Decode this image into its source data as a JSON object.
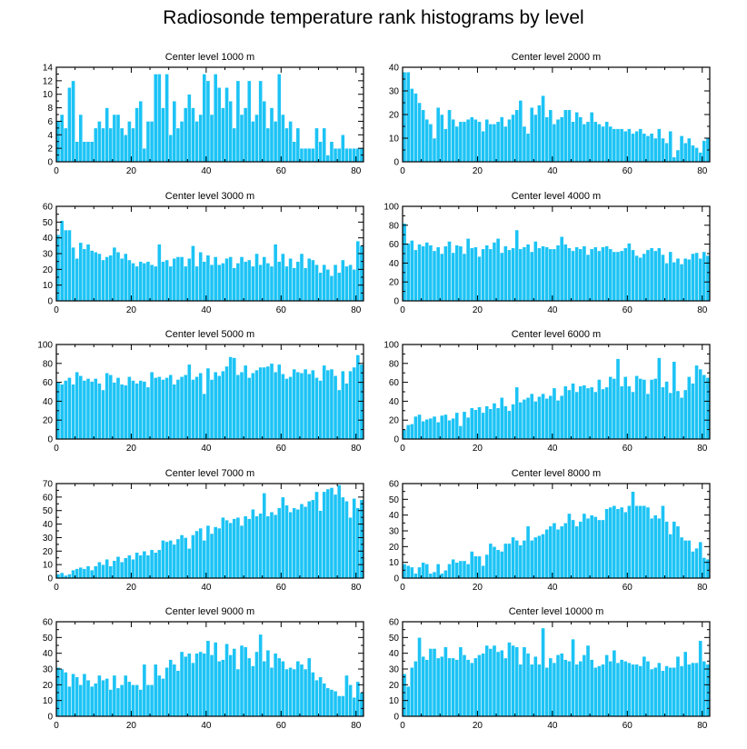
{
  "title": "Radiosonde temperature rank histograms by level",
  "colors": {
    "bar": "#1cc3f5",
    "bar_edge": "#ffffff",
    "axis": "#000000"
  },
  "chart_data": [
    {
      "type": "bar",
      "title": "Center level 1000 m",
      "x": "0..81",
      "ylim": [
        0,
        14
      ],
      "yticks": [
        0,
        2,
        4,
        6,
        8,
        10,
        12,
        14
      ],
      "xticks": [
        0,
        20,
        40,
        60,
        80
      ],
      "values": [
        6,
        7,
        5,
        11,
        12,
        3,
        7,
        3,
        3,
        3,
        5,
        6,
        5,
        8,
        5,
        7,
        7,
        5,
        4,
        6,
        5,
        8,
        9,
        2,
        6,
        6,
        13,
        13,
        8,
        13,
        4,
        9,
        5,
        6,
        8,
        10,
        8,
        6,
        7,
        13,
        12,
        7,
        13,
        11,
        8,
        11,
        9,
        5,
        12,
        7,
        8,
        12,
        6,
        7,
        12,
        9,
        5,
        8,
        6,
        13,
        7,
        5,
        6,
        3,
        5,
        2,
        2,
        2,
        2,
        5,
        3,
        5,
        1,
        3,
        2,
        2,
        4,
        2,
        2,
        2,
        2,
        2
      ]
    },
    {
      "type": "bar",
      "title": "Center level 2000 m",
      "x": "0..81",
      "ylim": [
        0,
        40
      ],
      "yticks": [
        0,
        10,
        20,
        30,
        40
      ],
      "xticks": [
        0,
        20,
        40,
        60,
        80
      ],
      "values": [
        38,
        38,
        31,
        29,
        25,
        22,
        18,
        16,
        10,
        23,
        20,
        14,
        22,
        18,
        15,
        17,
        17,
        18,
        19,
        18,
        17,
        13,
        18,
        16,
        16,
        17,
        19,
        15,
        18,
        20,
        22,
        26,
        15,
        12,
        23,
        20,
        24,
        28,
        19,
        22,
        16,
        18,
        19,
        22,
        22,
        17,
        21,
        19,
        16,
        17,
        21,
        17,
        16,
        15,
        17,
        15,
        14,
        14,
        14,
        13,
        14,
        12,
        13,
        14,
        12,
        11,
        12,
        10,
        14,
        10,
        8,
        13,
        2,
        5,
        11,
        8,
        10,
        7,
        6,
        4,
        9,
        10
      ]
    },
    {
      "type": "bar",
      "title": "Center level 3000 m",
      "x": "0..81",
      "ylim": [
        0,
        60
      ],
      "yticks": [
        0,
        10,
        20,
        30,
        40,
        50,
        60
      ],
      "xticks": [
        0,
        20,
        40,
        60,
        80
      ],
      "values": [
        42,
        51,
        45,
        45,
        34,
        27,
        37,
        33,
        36,
        32,
        31,
        30,
        26,
        28,
        29,
        34,
        31,
        27,
        30,
        26,
        24,
        22,
        25,
        24,
        25,
        23,
        22,
        36,
        25,
        26,
        22,
        27,
        28,
        28,
        22,
        27,
        35,
        22,
        31,
        25,
        29,
        23,
        28,
        23,
        24,
        27,
        28,
        21,
        24,
        28,
        25,
        26,
        22,
        30,
        23,
        28,
        24,
        22,
        36,
        25,
        30,
        22,
        27,
        21,
        25,
        30,
        21,
        27,
        26,
        23,
        18,
        23,
        20,
        16,
        23,
        18,
        26,
        22,
        23,
        20,
        38,
        35
      ]
    },
    {
      "type": "bar",
      "title": "Center level 4000 m",
      "x": "0..81",
      "ylim": [
        0,
        100
      ],
      "yticks": [
        0,
        20,
        40,
        60,
        80,
        100
      ],
      "xticks": [
        0,
        20,
        40,
        60,
        80
      ],
      "values": [
        82,
        61,
        64,
        54,
        60,
        58,
        62,
        59,
        53,
        57,
        50,
        58,
        63,
        51,
        59,
        58,
        50,
        66,
        56,
        57,
        47,
        55,
        59,
        55,
        62,
        66,
        51,
        58,
        54,
        56,
        75,
        55,
        57,
        60,
        52,
        63,
        56,
        58,
        57,
        55,
        55,
        59,
        68,
        60,
        56,
        53,
        57,
        55,
        58,
        49,
        55,
        57,
        53,
        57,
        58,
        55,
        52,
        52,
        53,
        56,
        61,
        54,
        48,
        46,
        50,
        54,
        56,
        53,
        56,
        49,
        40,
        52,
        41,
        45,
        39,
        45,
        44,
        50,
        51,
        45,
        52,
        48
      ]
    },
    {
      "type": "bar",
      "title": "Center level 5000 m",
      "x": "0..81",
      "ylim": [
        0,
        100
      ],
      "yticks": [
        0,
        20,
        40,
        60,
        80,
        100
      ],
      "xticks": [
        0,
        20,
        40,
        60,
        80
      ],
      "values": [
        60,
        58,
        62,
        65,
        58,
        71,
        67,
        62,
        64,
        61,
        64,
        59,
        52,
        70,
        68,
        60,
        65,
        58,
        57,
        66,
        62,
        59,
        62,
        61,
        55,
        71,
        65,
        66,
        63,
        65,
        68,
        58,
        63,
        66,
        68,
        79,
        63,
        66,
        70,
        48,
        75,
        63,
        71,
        67,
        72,
        77,
        87,
        86,
        68,
        71,
        78,
        65,
        70,
        73,
        76,
        76,
        77,
        80,
        71,
        79,
        69,
        64,
        66,
        74,
        71,
        70,
        74,
        69,
        73,
        65,
        62,
        78,
        73,
        74,
        67,
        52,
        72,
        59,
        72,
        76,
        89,
        79
      ]
    },
    {
      "type": "bar",
      "title": "Center level 6000 m",
      "x": "0..81",
      "ylim": [
        0,
        100
      ],
      "yticks": [
        0,
        20,
        40,
        60,
        80,
        100
      ],
      "xticks": [
        0,
        20,
        40,
        60,
        80
      ],
      "values": [
        10,
        15,
        16,
        24,
        26,
        19,
        21,
        22,
        24,
        18,
        25,
        26,
        20,
        22,
        28,
        14,
        29,
        23,
        33,
        31,
        34,
        28,
        35,
        32,
        38,
        33,
        44,
        35,
        30,
        37,
        55,
        39,
        42,
        44,
        48,
        40,
        45,
        48,
        43,
        46,
        54,
        41,
        46,
        56,
        52,
        59,
        50,
        56,
        57,
        54,
        55,
        50,
        63,
        53,
        55,
        66,
        64,
        85,
        56,
        66,
        56,
        50,
        67,
        64,
        63,
        48,
        63,
        64,
        86,
        55,
        61,
        49,
        82,
        51,
        44,
        52,
        66,
        59,
        78,
        74,
        68,
        65
      ]
    },
    {
      "type": "bar",
      "title": "Center level 7000 m",
      "x": "0..81",
      "ylim": [
        0,
        70
      ],
      "yticks": [
        0,
        10,
        20,
        30,
        40,
        50,
        60,
        70
      ],
      "xticks": [
        0,
        20,
        40,
        60,
        80
      ],
      "values": [
        3,
        4,
        2,
        3,
        6,
        7,
        8,
        7,
        9,
        6,
        9,
        12,
        10,
        14,
        9,
        13,
        16,
        12,
        15,
        17,
        14,
        19,
        17,
        20,
        17,
        21,
        19,
        21,
        28,
        27,
        28,
        25,
        29,
        32,
        30,
        22,
        32,
        35,
        37,
        28,
        39,
        33,
        38,
        37,
        45,
        43,
        41,
        44,
        45,
        39,
        46,
        44,
        51,
        46,
        48,
        63,
        46,
        49,
        47,
        52,
        60,
        54,
        49,
        52,
        51,
        55,
        53,
        57,
        58,
        64,
        50,
        64,
        66,
        67,
        62,
        69,
        60,
        57,
        45,
        59,
        52,
        58
      ]
    },
    {
      "type": "bar",
      "title": "Center level 8000 m",
      "x": "0..81",
      "ylim": [
        0,
        60
      ],
      "yticks": [
        0,
        10,
        20,
        30,
        40,
        50,
        60
      ],
      "xticks": [
        0,
        20,
        40,
        60,
        80
      ],
      "values": [
        9,
        8,
        7,
        3,
        7,
        10,
        9,
        3,
        4,
        9,
        3,
        5,
        9,
        12,
        10,
        11,
        11,
        9,
        17,
        14,
        14,
        8,
        15,
        22,
        20,
        18,
        17,
        22,
        22,
        26,
        24,
        21,
        24,
        33,
        24,
        26,
        27,
        28,
        31,
        33,
        35,
        31,
        33,
        35,
        41,
        37,
        33,
        36,
        41,
        38,
        40,
        39,
        37,
        37,
        44,
        45,
        46,
        44,
        45,
        42,
        46,
        55,
        46,
        46,
        46,
        45,
        38,
        40,
        38,
        46,
        36,
        28,
        36,
        33,
        26,
        24,
        24,
        17,
        19,
        23,
        13,
        12
      ]
    },
    {
      "type": "bar",
      "title": "Center level 9000 m",
      "x": "0..81",
      "ylim": [
        0,
        60
      ],
      "yticks": [
        0,
        10,
        20,
        30,
        40,
        50,
        60
      ],
      "xticks": [
        0,
        20,
        40,
        60,
        80
      ],
      "values": [
        31,
        30,
        28,
        19,
        27,
        25,
        20,
        27,
        23,
        19,
        21,
        26,
        23,
        24,
        17,
        26,
        18,
        20,
        26,
        22,
        20,
        20,
        17,
        33,
        20,
        20,
        33,
        26,
        24,
        31,
        36,
        33,
        29,
        41,
        38,
        40,
        34,
        40,
        41,
        40,
        48,
        39,
        47,
        35,
        36,
        46,
        39,
        43,
        30,
        45,
        44,
        37,
        32,
        41,
        52,
        35,
        42,
        31,
        40,
        37,
        35,
        30,
        31,
        30,
        35,
        33,
        30,
        37,
        28,
        23,
        25,
        21,
        18,
        17,
        16,
        13,
        13,
        26,
        20,
        12,
        22,
        15
      ]
    },
    {
      "type": "bar",
      "title": "Center level 10000 m",
      "x": "0..81",
      "ylim": [
        0,
        60
      ],
      "yticks": [
        0,
        10,
        20,
        30,
        40,
        50,
        60
      ],
      "xticks": [
        0,
        20,
        40,
        60,
        80
      ],
      "values": [
        27,
        19,
        31,
        35,
        50,
        38,
        36,
        43,
        43,
        37,
        38,
        44,
        37,
        37,
        36,
        44,
        39,
        36,
        34,
        37,
        39,
        40,
        45,
        43,
        45,
        41,
        42,
        37,
        47,
        45,
        44,
        33,
        44,
        40,
        33,
        38,
        33,
        56,
        31,
        37,
        34,
        39,
        40,
        36,
        35,
        49,
        33,
        35,
        39,
        45,
        36,
        31,
        32,
        33,
        39,
        35,
        42,
        34,
        36,
        35,
        34,
        33,
        33,
        32,
        38,
        35,
        30,
        31,
        34,
        29,
        32,
        31,
        31,
        38,
        32,
        41,
        33,
        34,
        34,
        48,
        35,
        33
      ]
    }
  ]
}
